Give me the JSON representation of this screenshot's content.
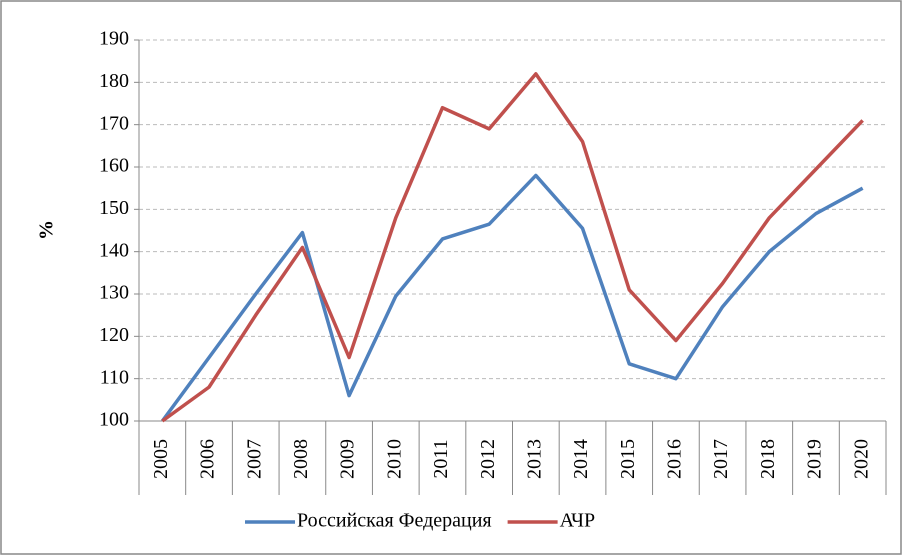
{
  "chart_data": {
    "type": "line",
    "y_label": "%",
    "categories": [
      "2005",
      "2006",
      "2007",
      "2008",
      "2009",
      "2010",
      "2011",
      "2012",
      "2013",
      "2014",
      "2015",
      "2016",
      "2017",
      "2018",
      "2019",
      "2020"
    ],
    "series": [
      {
        "name": "Российская Федерация",
        "color": "#4f81bd",
        "values": [
          100,
          115,
          130,
          144.5,
          106,
          129.5,
          143,
          146.5,
          158,
          145.5,
          113.5,
          110,
          127,
          140,
          149,
          155
        ]
      },
      {
        "name": "АЧР",
        "color": "#c0504d",
        "values": [
          100,
          108,
          125,
          141,
          115,
          148,
          174,
          169,
          182,
          166,
          131,
          119,
          132.5,
          148,
          159.5,
          171
        ]
      }
    ],
    "ylim": [
      100,
      190
    ],
    "yticks": [
      100,
      110,
      120,
      130,
      140,
      150,
      160,
      170,
      180,
      190
    ],
    "grid": true,
    "legend": "bottom"
  }
}
